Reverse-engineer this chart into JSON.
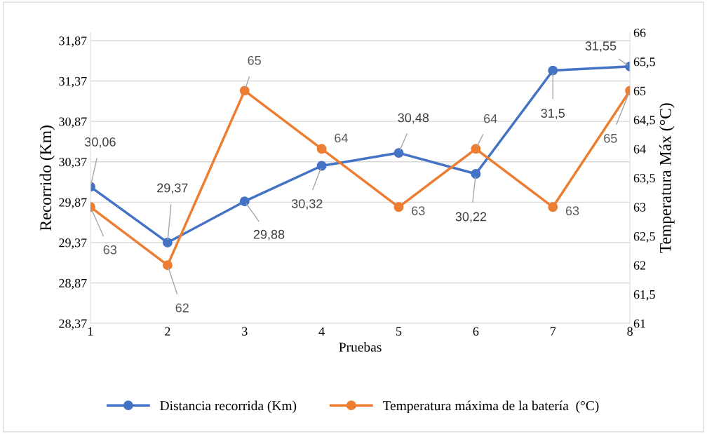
{
  "chart_data": {
    "type": "line",
    "xlabel": "Pruebas",
    "ylabel": "Recorrido (Km)",
    "y2label": "Temperatura Máx (°C)",
    "categories": [
      "1",
      "2",
      "3",
      "4",
      "5",
      "6",
      "7",
      "8"
    ],
    "series": [
      {
        "name": "Distancia recorrida (Km)",
        "color": "#4472c4",
        "values": [
          30.06,
          29.37,
          29.88,
          30.32,
          30.48,
          30.22,
          31.5,
          31.55
        ],
        "value_labels": [
          "30,06",
          "29,37",
          "29,88",
          "30,32",
          "30,48",
          "30,22",
          "31,5",
          "31,55"
        ]
      },
      {
        "name": "Temperatura máxima de la batería  (°C)",
        "color": "#ed7d31",
        "axis": "y2",
        "values": [
          63,
          62,
          65,
          64,
          63,
          64,
          63,
          65
        ],
        "value_labels": [
          "63",
          "62",
          "65",
          "64",
          "63",
          "64",
          "63",
          "65"
        ]
      }
    ],
    "ylim": [
      28.37,
      31.97
    ],
    "yticks": [
      {
        "value": 28.37,
        "label": "28,37"
      },
      {
        "value": 28.87,
        "label": "28,87"
      },
      {
        "value": 29.37,
        "label": "29,37"
      },
      {
        "value": 29.87,
        "label": "29,87"
      },
      {
        "value": 30.37,
        "label": "30,37"
      },
      {
        "value": 30.87,
        "label": "30,87"
      },
      {
        "value": 31.37,
        "label": "31,37"
      },
      {
        "value": 31.87,
        "label": "31,87"
      }
    ],
    "y2lim": [
      61,
      66
    ],
    "y2ticks": [
      61,
      {
        "value": 61.5,
        "label": "61,5"
      },
      62,
      {
        "value": 62.5,
        "label": "62,5"
      },
      63,
      {
        "value": 63.5,
        "label": "63,5"
      },
      64,
      {
        "value": 64.5,
        "label": "64,5"
      },
      65,
      {
        "value": 65.5,
        "label": "65,5"
      },
      66
    ],
    "grid": "y",
    "legend": "bottom",
    "marker": "circle",
    "line_style": "solid"
  }
}
